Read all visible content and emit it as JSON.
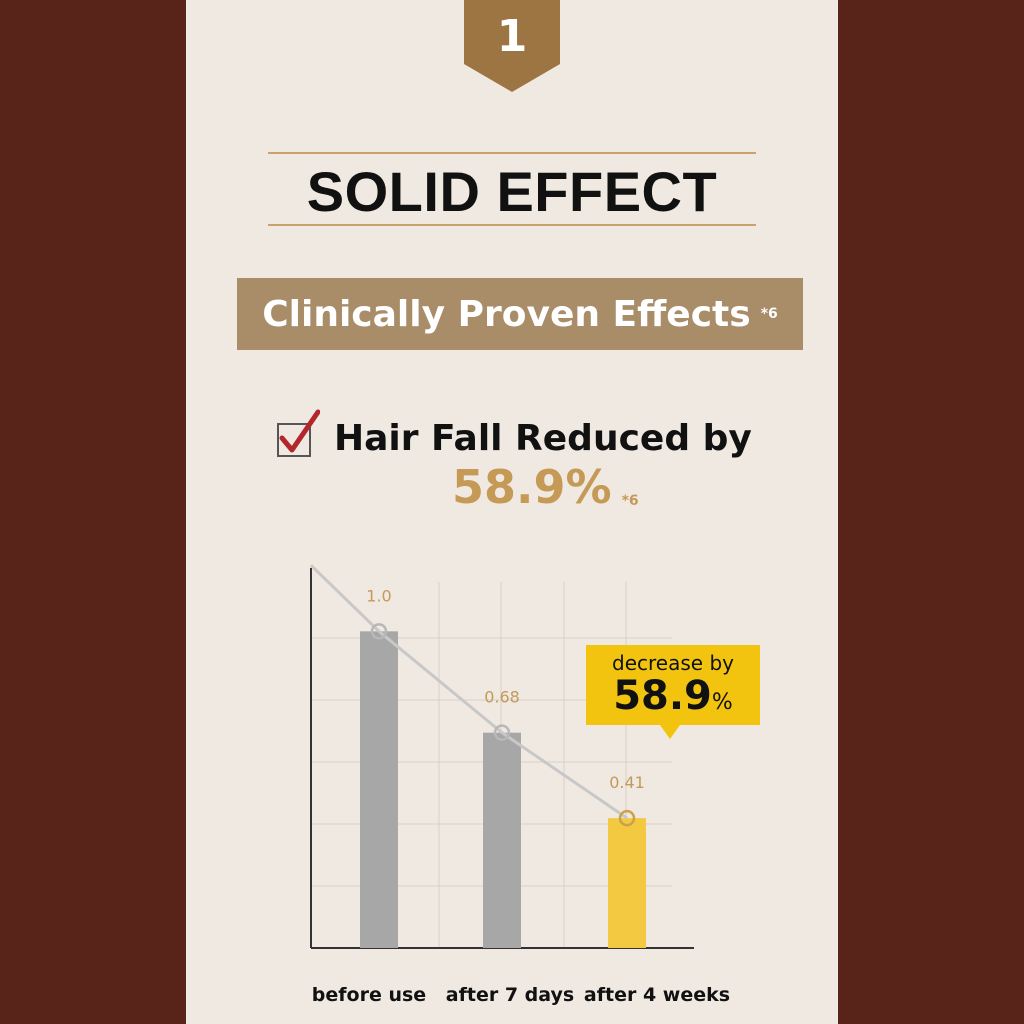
{
  "badge": {
    "number": "1",
    "color": "#9d7542"
  },
  "heading": {
    "title": "SOLID EFFECT"
  },
  "subheading": {
    "label": "Clinically Proven Effects",
    "note": "*6"
  },
  "claim": {
    "text": "Hair Fall Reduced by",
    "value": "58.9%",
    "note": "*6"
  },
  "callout": {
    "line1": "decrease by",
    "value": "58.9",
    "unit": "%"
  },
  "colors": {
    "background": "#582318",
    "panel": "#f0e9e2",
    "accent": "#c59a56",
    "gray_bar": "#a7a7a7",
    "highlight_bar": "#f2c940"
  },
  "chart_data": {
    "type": "bar",
    "categories": [
      "before use",
      "after 7 days",
      "after 4 weeks"
    ],
    "values": [
      1.0,
      0.68,
      0.41
    ],
    "value_labels": [
      "1.0",
      "0.68",
      "0.41"
    ],
    "highlight_index": 2,
    "trend_line": true,
    "ylim": [
      0,
      1.2
    ],
    "grid": true,
    "title": "",
    "xlabel": "",
    "ylabel": ""
  }
}
